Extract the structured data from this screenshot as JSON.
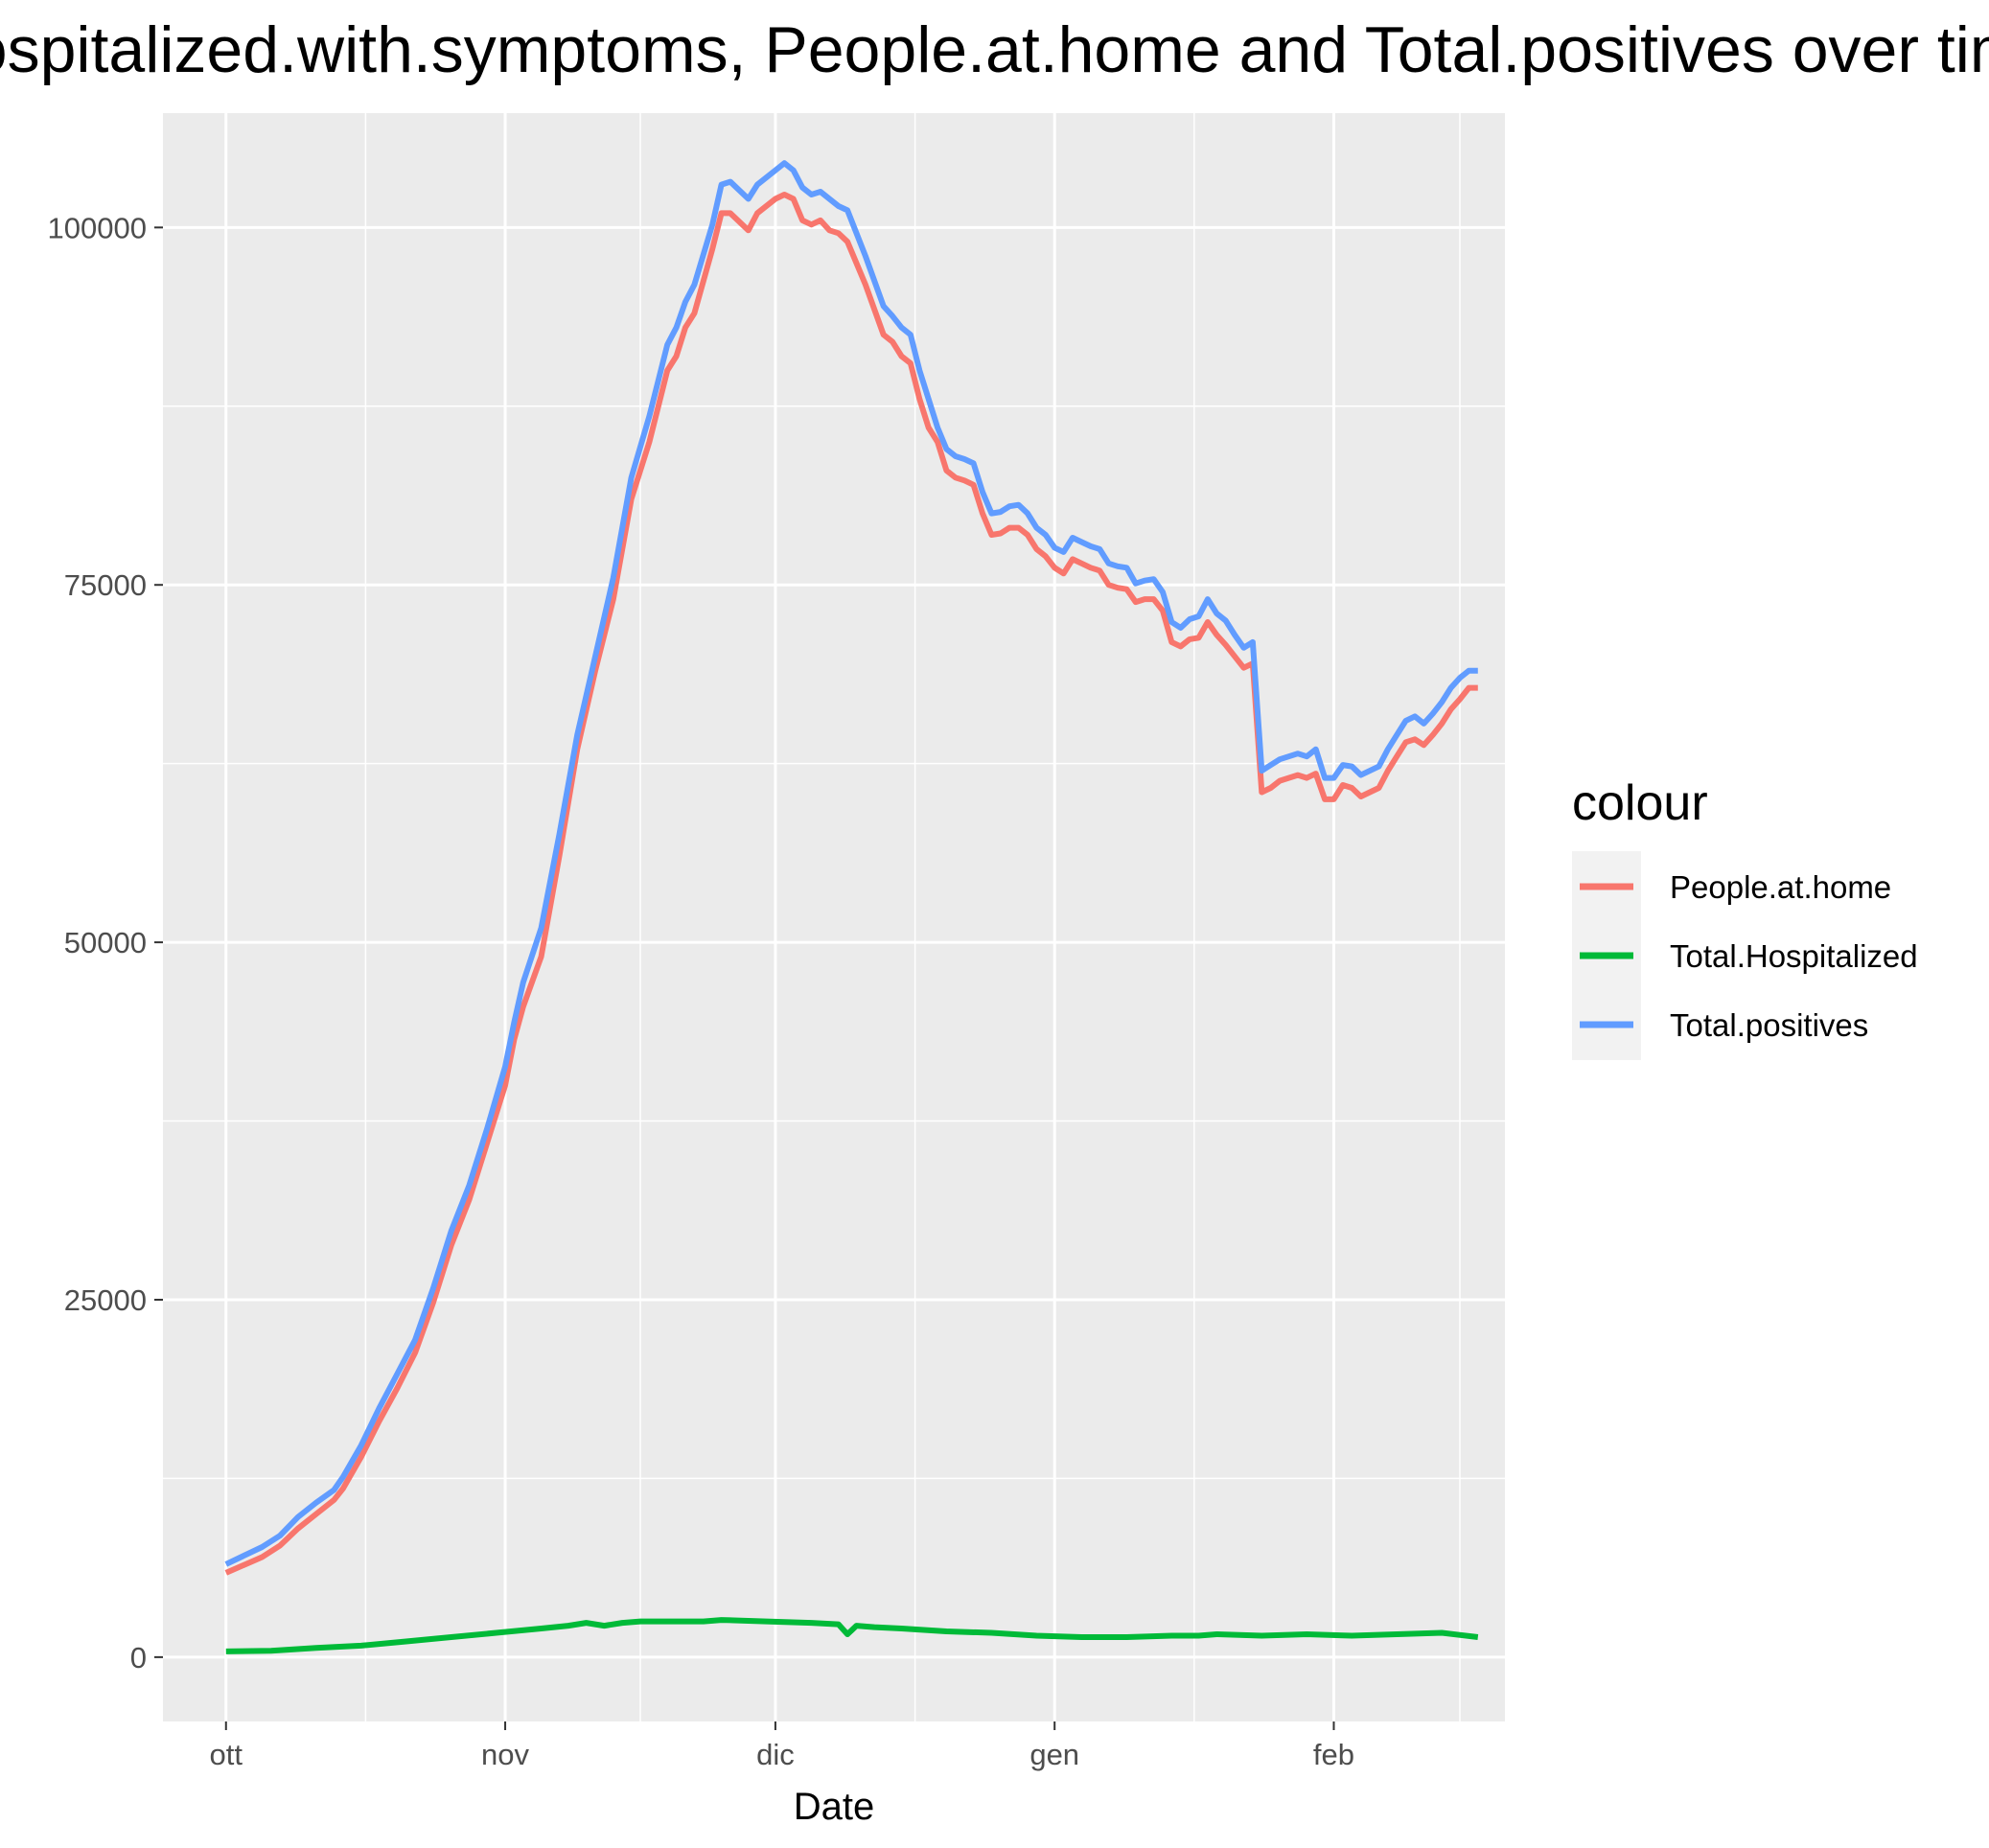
{
  "chart_data": {
    "type": "line",
    "title": "Hospitalized.with.symptoms, People.at.home and Total.positives over time",
    "xlabel": "Date",
    "ylabel": "",
    "x_tick_labels": [
      "ott",
      "nov",
      "dic",
      "gen",
      "feb"
    ],
    "x_start": "2020-10-01",
    "x_range": [
      "2020-09-24",
      "2021-02-20"
    ],
    "ylim": [
      -4500,
      108000
    ],
    "y_ticks": [
      0,
      25000,
      50000,
      75000,
      100000
    ],
    "grid": true,
    "legend": {
      "title": "colour",
      "position": "right",
      "entries": [
        "People.at.home",
        "Total.Hospitalized",
        "Total.positives"
      ]
    },
    "series": [
      {
        "name": "People.at.home",
        "color": "#F8766D",
        "points": [
          [
            0,
            5900
          ],
          [
            4,
            7000
          ],
          [
            6,
            7800
          ],
          [
            8,
            9000
          ],
          [
            10,
            10000
          ],
          [
            12,
            11000
          ],
          [
            13,
            11800
          ],
          [
            15,
            14000
          ],
          [
            17,
            16500
          ],
          [
            19,
            18800
          ],
          [
            21,
            21300
          ],
          [
            23,
            24800
          ],
          [
            25,
            28800
          ],
          [
            27,
            32000
          ],
          [
            29,
            36000
          ],
          [
            31,
            40000
          ],
          [
            32,
            43200
          ],
          [
            33,
            45500
          ],
          [
            35,
            49000
          ],
          [
            37,
            56000
          ],
          [
            39,
            63500
          ],
          [
            41,
            69000
          ],
          [
            43,
            74000
          ],
          [
            45,
            81000
          ],
          [
            47,
            85000
          ],
          [
            49,
            90000
          ],
          [
            50,
            91000
          ],
          [
            51,
            93000
          ],
          [
            52,
            94000
          ],
          [
            54,
            98500
          ],
          [
            55,
            101000
          ],
          [
            56,
            101000
          ],
          [
            58,
            99800
          ],
          [
            59,
            101000
          ],
          [
            61,
            102000
          ],
          [
            62,
            102300
          ],
          [
            63,
            102000
          ],
          [
            64,
            100500
          ],
          [
            65,
            100200
          ],
          [
            66,
            100500
          ],
          [
            67,
            99800
          ],
          [
            68,
            99600
          ],
          [
            69,
            99000
          ],
          [
            71,
            96000
          ],
          [
            73,
            92500
          ],
          [
            74,
            92000
          ],
          [
            75,
            91000
          ],
          [
            76,
            90500
          ],
          [
            77,
            88000
          ],
          [
            78,
            86000
          ],
          [
            79,
            85000
          ],
          [
            80,
            83000
          ],
          [
            81,
            82500
          ],
          [
            82,
            82300
          ],
          [
            83,
            82000
          ],
          [
            84,
            80000
          ],
          [
            85,
            78500
          ],
          [
            86,
            78600
          ],
          [
            87,
            79000
          ],
          [
            88,
            79000
          ],
          [
            89,
            78500
          ],
          [
            90,
            77500
          ],
          [
            91,
            77000
          ],
          [
            92,
            76200
          ],
          [
            93,
            75800
          ],
          [
            94,
            76800
          ],
          [
            95,
            76500
          ],
          [
            96,
            76200
          ],
          [
            97,
            76000
          ],
          [
            98,
            75000
          ],
          [
            99,
            74800
          ],
          [
            100,
            74700
          ],
          [
            101,
            73800
          ],
          [
            102,
            74000
          ],
          [
            103,
            74000
          ],
          [
            104,
            73200
          ],
          [
            105,
            71000
          ],
          [
            106,
            70700
          ],
          [
            107,
            71200
          ],
          [
            108,
            71300
          ],
          [
            109,
            72400
          ],
          [
            110,
            71500
          ],
          [
            111,
            70800
          ],
          [
            112,
            70000
          ],
          [
            113,
            69200
          ],
          [
            114,
            69500
          ],
          [
            115,
            60500
          ],
          [
            116,
            60800
          ],
          [
            117,
            61300
          ],
          [
            118,
            61500
          ],
          [
            119,
            61700
          ],
          [
            120,
            61500
          ],
          [
            121,
            61800
          ],
          [
            122,
            60000
          ],
          [
            123,
            60000
          ],
          [
            124,
            61000
          ],
          [
            125,
            60800
          ],
          [
            126,
            60200
          ],
          [
            127,
            60500
          ],
          [
            128,
            60800
          ],
          [
            129,
            62000
          ],
          [
            130,
            63000
          ],
          [
            131,
            64000
          ],
          [
            132,
            64200
          ],
          [
            133,
            63800
          ],
          [
            134,
            64500
          ],
          [
            135,
            65300
          ],
          [
            136,
            66300
          ],
          [
            137,
            67000
          ],
          [
            138,
            67800
          ],
          [
            139,
            67800
          ]
        ]
      },
      {
        "name": "Total.Hospitalized",
        "color": "#00BA38",
        "points": [
          [
            0,
            400
          ],
          [
            5,
            450
          ],
          [
            10,
            650
          ],
          [
            15,
            800
          ],
          [
            20,
            1100
          ],
          [
            25,
            1400
          ],
          [
            30,
            1700
          ],
          [
            35,
            2000
          ],
          [
            38,
            2200
          ],
          [
            40,
            2400
          ],
          [
            42,
            2200
          ],
          [
            44,
            2400
          ],
          [
            46,
            2500
          ],
          [
            50,
            2500
          ],
          [
            53,
            2500
          ],
          [
            55,
            2600
          ],
          [
            60,
            2500
          ],
          [
            65,
            2400
          ],
          [
            68,
            2300
          ],
          [
            69,
            1600
          ],
          [
            70,
            2200
          ],
          [
            72,
            2100
          ],
          [
            75,
            2000
          ],
          [
            80,
            1800
          ],
          [
            85,
            1700
          ],
          [
            90,
            1500
          ],
          [
            95,
            1400
          ],
          [
            100,
            1400
          ],
          [
            105,
            1500
          ],
          [
            108,
            1500
          ],
          [
            110,
            1600
          ],
          [
            115,
            1500
          ],
          [
            120,
            1600
          ],
          [
            125,
            1500
          ],
          [
            130,
            1600
          ],
          [
            135,
            1700
          ],
          [
            139,
            1400
          ]
        ]
      },
      {
        "name": "Total.positives",
        "color": "#619CFF",
        "points": [
          [
            0,
            6500
          ],
          [
            4,
            7700
          ],
          [
            6,
            8500
          ],
          [
            8,
            9800
          ],
          [
            10,
            10800
          ],
          [
            12,
            11700
          ],
          [
            13,
            12600
          ],
          [
            15,
            14800
          ],
          [
            17,
            17400
          ],
          [
            19,
            19800
          ],
          [
            21,
            22200
          ],
          [
            23,
            25800
          ],
          [
            25,
            29800
          ],
          [
            27,
            33000
          ],
          [
            29,
            37000
          ],
          [
            31,
            41300
          ],
          [
            32,
            44400
          ],
          [
            33,
            47200
          ],
          [
            35,
            51000
          ],
          [
            37,
            57500
          ],
          [
            39,
            64500
          ],
          [
            41,
            70000
          ],
          [
            43,
            75500
          ],
          [
            45,
            82500
          ],
          [
            47,
            86800
          ],
          [
            49,
            91800
          ],
          [
            50,
            93000
          ],
          [
            51,
            94800
          ],
          [
            52,
            96000
          ],
          [
            54,
            100200
          ],
          [
            55,
            103000
          ],
          [
            56,
            103200
          ],
          [
            58,
            102000
          ],
          [
            59,
            103000
          ],
          [
            61,
            104000
          ],
          [
            62,
            104500
          ],
          [
            63,
            104000
          ],
          [
            64,
            102800
          ],
          [
            65,
            102300
          ],
          [
            66,
            102500
          ],
          [
            67,
            102000
          ],
          [
            68,
            101500
          ],
          [
            69,
            101200
          ],
          [
            71,
            98000
          ],
          [
            73,
            94500
          ],
          [
            74,
            93800
          ],
          [
            75,
            93000
          ],
          [
            76,
            92500
          ],
          [
            77,
            90000
          ],
          [
            78,
            88000
          ],
          [
            79,
            86000
          ],
          [
            80,
            84500
          ],
          [
            81,
            84000
          ],
          [
            82,
            83800
          ],
          [
            83,
            83500
          ],
          [
            84,
            81500
          ],
          [
            85,
            80000
          ],
          [
            86,
            80100
          ],
          [
            87,
            80500
          ],
          [
            88,
            80600
          ],
          [
            89,
            80000
          ],
          [
            90,
            79000
          ],
          [
            91,
            78500
          ],
          [
            92,
            77600
          ],
          [
            93,
            77300
          ],
          [
            94,
            78300
          ],
          [
            95,
            78000
          ],
          [
            96,
            77700
          ],
          [
            97,
            77500
          ],
          [
            98,
            76500
          ],
          [
            99,
            76300
          ],
          [
            100,
            76200
          ],
          [
            101,
            75100
          ],
          [
            102,
            75300
          ],
          [
            103,
            75400
          ],
          [
            104,
            74500
          ],
          [
            105,
            72400
          ],
          [
            106,
            72000
          ],
          [
            107,
            72600
          ],
          [
            108,
            72800
          ],
          [
            109,
            74000
          ],
          [
            110,
            73000
          ],
          [
            111,
            72500
          ],
          [
            112,
            71500
          ],
          [
            113,
            70600
          ],
          [
            114,
            71000
          ],
          [
            115,
            62000
          ],
          [
            116,
            62400
          ],
          [
            117,
            62800
          ],
          [
            118,
            63000
          ],
          [
            119,
            63200
          ],
          [
            120,
            63000
          ],
          [
            121,
            63500
          ],
          [
            122,
            61500
          ],
          [
            123,
            61500
          ],
          [
            124,
            62400
          ],
          [
            125,
            62300
          ],
          [
            126,
            61700
          ],
          [
            127,
            62000
          ],
          [
            128,
            62300
          ],
          [
            129,
            63500
          ],
          [
            130,
            64500
          ],
          [
            131,
            65500
          ],
          [
            132,
            65800
          ],
          [
            133,
            65300
          ],
          [
            134,
            66000
          ],
          [
            135,
            66800
          ],
          [
            136,
            67800
          ],
          [
            137,
            68500
          ],
          [
            138,
            69000
          ],
          [
            139,
            69000
          ]
        ]
      }
    ]
  }
}
